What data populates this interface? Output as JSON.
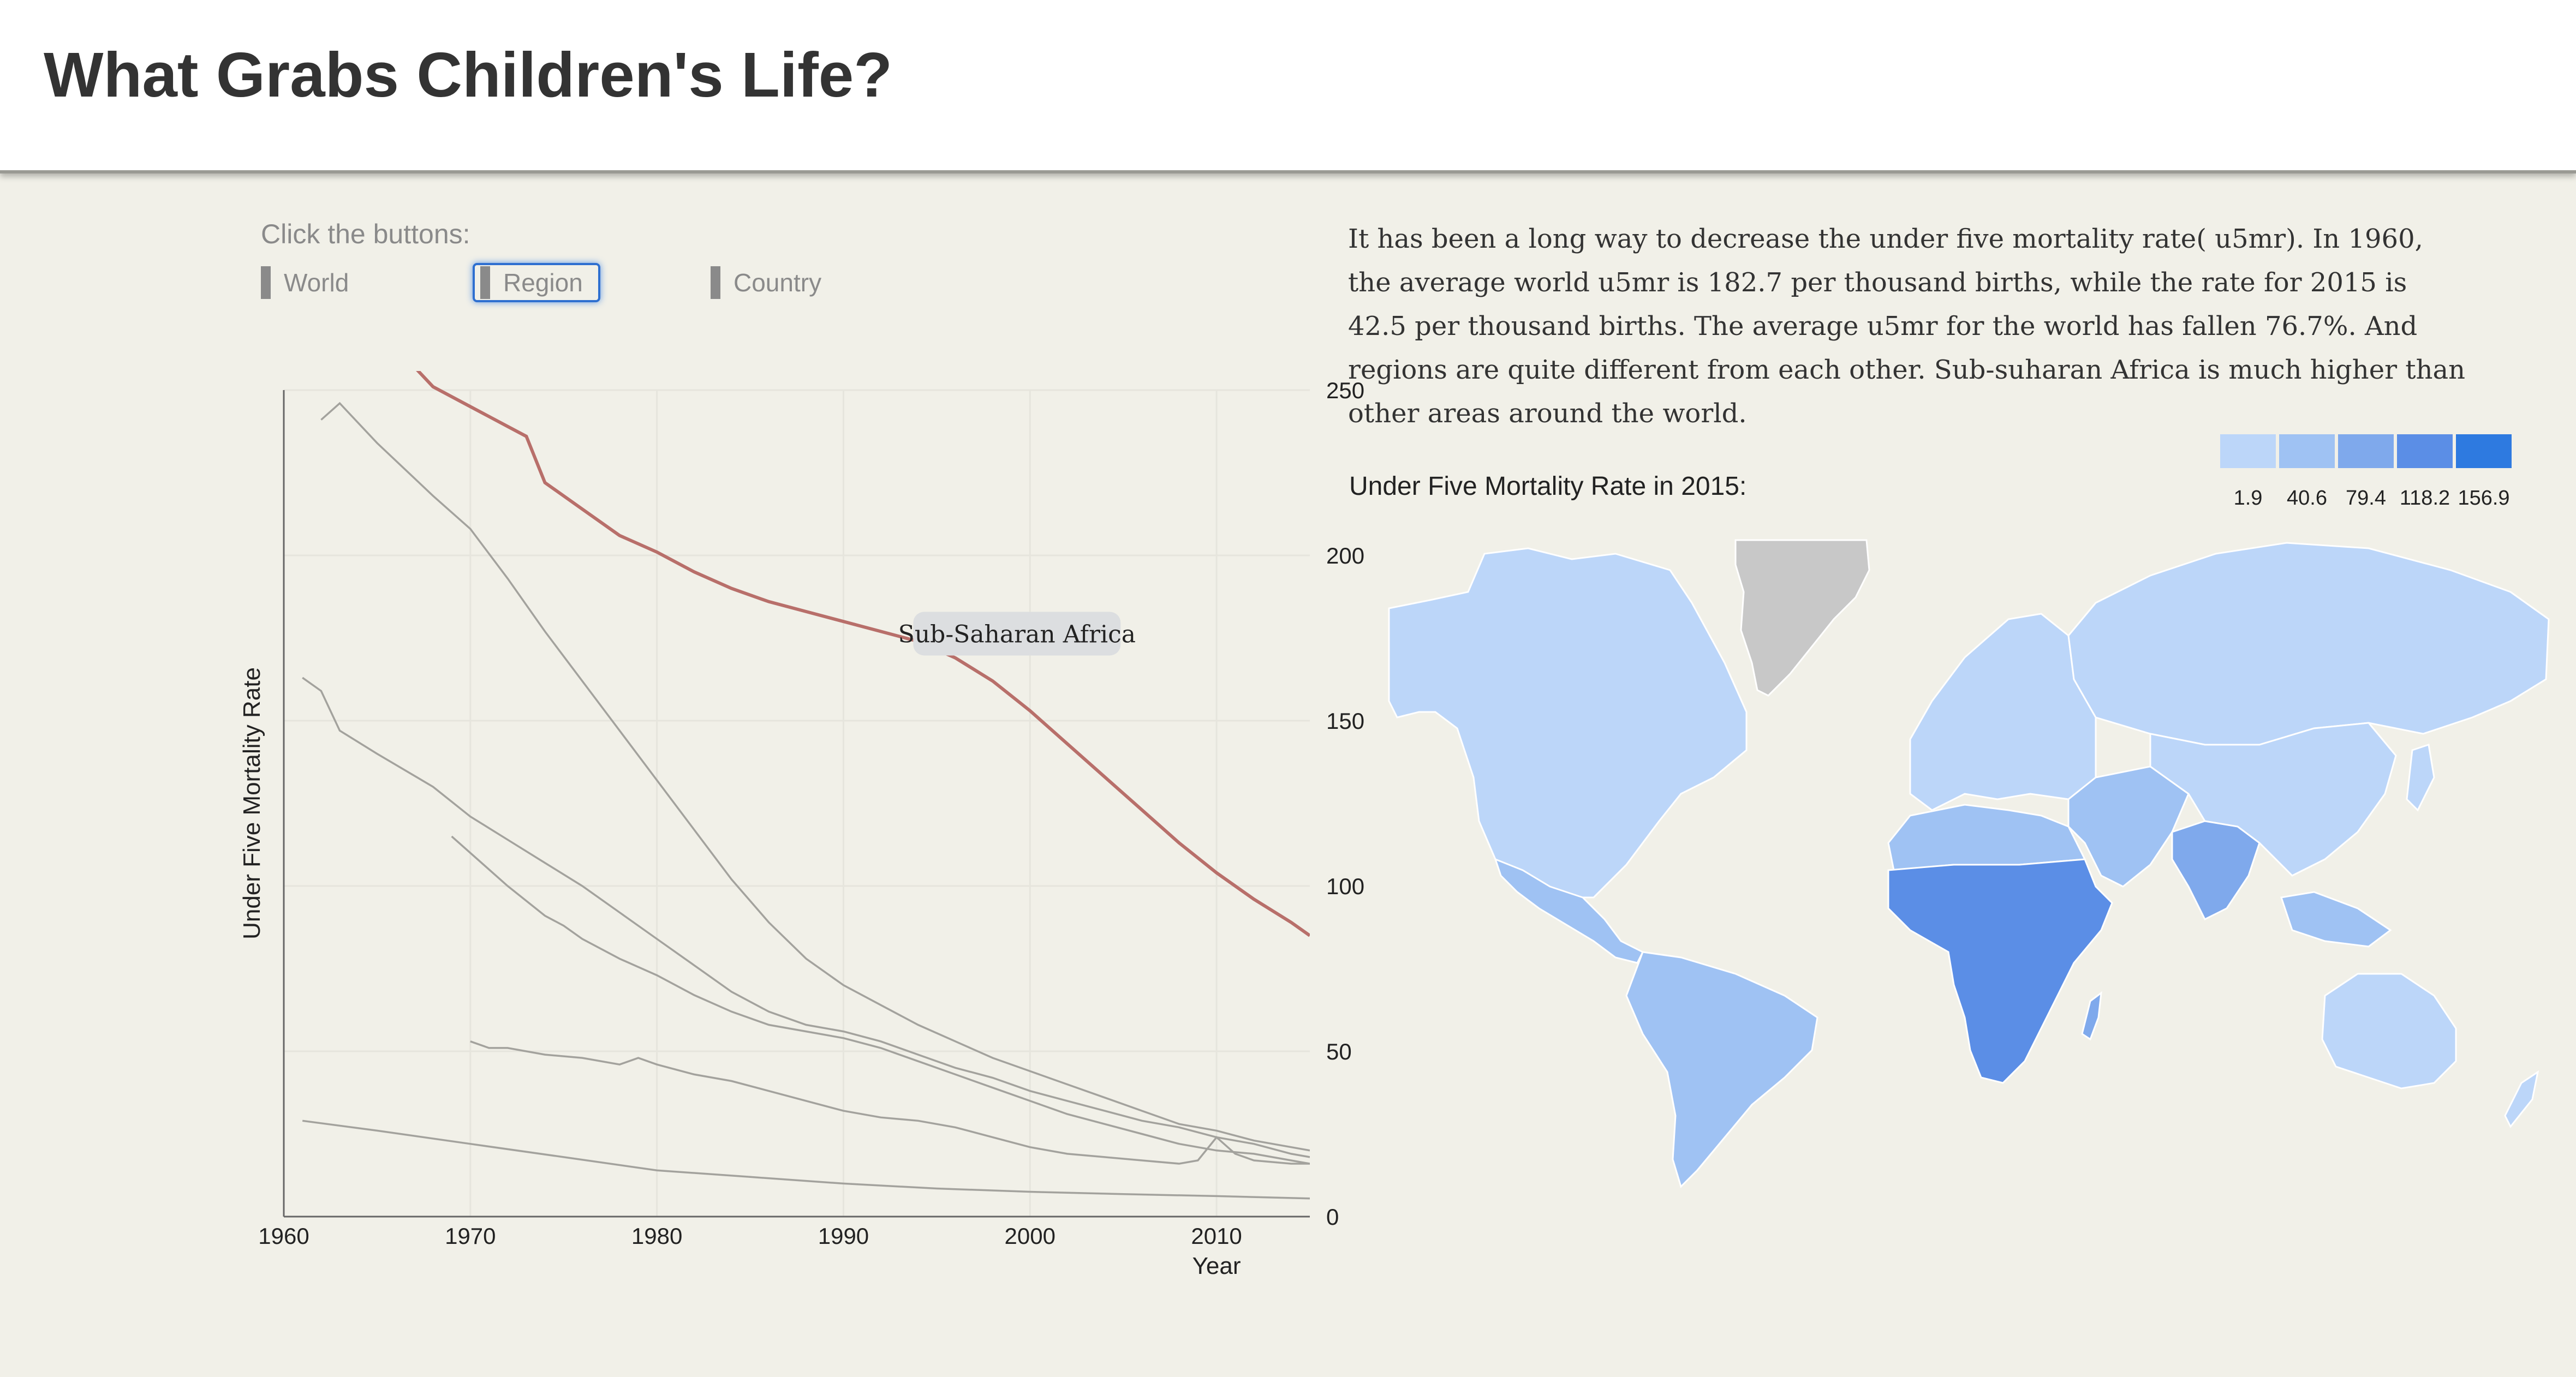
{
  "header": {
    "title": "What Grabs Children's Life?"
  },
  "controls": {
    "instruction": "Click the buttons:",
    "buttons": [
      {
        "label": "World",
        "active": false
      },
      {
        "label": "Region",
        "active": true
      },
      {
        "label": "Country",
        "active": false
      }
    ]
  },
  "description": "It has been a long way to decrease the under five mortality rate( u5mr). In 1960, the average world u5mr is 182.7 per thousand births, while the rate for 2015 is 42.5 per thousand births. The average u5mr for the world has fallen 76.7%. And regions are quite different from each other. Sub-suharan Africa is much higher than other areas around the world.",
  "map": {
    "title": "Under Five Mortality Rate in 2015:",
    "legend": [
      {
        "label": "1.9",
        "color": "#bcd6f9"
      },
      {
        "label": "40.6",
        "color": "#9fc2f3"
      },
      {
        "label": "79.4",
        "color": "#7fa9ec"
      },
      {
        "label": "118.2",
        "color": "#5b8ee6"
      },
      {
        "label": "156.9",
        "color": "#2e7ae0"
      }
    ],
    "no_data_color": "#c8c8c8"
  },
  "chart_data": {
    "type": "line",
    "xlabel": "Year",
    "ylabel": "Under Five Mortality Rate",
    "xlim": [
      1960,
      2015
    ],
    "ylim": [
      0,
      250
    ],
    "xticks": [
      "1960",
      "1970",
      "1980",
      "1990",
      "2000",
      "2010"
    ],
    "yticks": [
      "0",
      "50",
      "100",
      "150",
      "200",
      "250"
    ],
    "grid": true,
    "y_axis_side": "right",
    "highlight_label": "Sub-Saharan Africa",
    "highlight_color": "#b86f6a",
    "series": [
      {
        "name": "Sub-Saharan Africa",
        "highlight": true,
        "x": [
          1966,
          1967,
          1968,
          1970,
          1972,
          1973,
          1974,
          1976,
          1978,
          1980,
          1982,
          1984,
          1986,
          1988,
          1990,
          1992,
          1994,
          1996,
          1998,
          2000,
          2002,
          2004,
          2006,
          2008,
          2010,
          2012,
          2014,
          2015
        ],
        "y": [
          259,
          257,
          251,
          245,
          239,
          236,
          222,
          214,
          206,
          201,
          195,
          190,
          186,
          183,
          180,
          177,
          174,
          169,
          162,
          153,
          143,
          133,
          123,
          113,
          104,
          96,
          89,
          85
        ]
      },
      {
        "highlight": false,
        "x": [
          1962,
          1963,
          1965,
          1968,
          1970,
          1972,
          1974,
          1976,
          1978,
          1980,
          1982,
          1984,
          1986,
          1988,
          1990,
          1992,
          1994,
          1996,
          1998,
          2000,
          2002,
          2004,
          2006,
          2008,
          2010,
          2012,
          2014,
          2015
        ],
        "y": [
          241,
          246,
          234,
          218,
          208,
          193,
          177,
          162,
          147,
          132,
          117,
          102,
          89,
          78,
          70,
          64,
          58,
          53,
          48,
          44,
          40,
          36,
          32,
          28,
          26,
          23,
          21,
          20
        ]
      },
      {
        "highlight": false,
        "x": [
          1961,
          1962,
          1963,
          1965,
          1968,
          1970,
          1972,
          1974,
          1976,
          1978,
          1980,
          1982,
          1984,
          1986,
          1988,
          1990,
          1992,
          1994,
          1996,
          1998,
          2000,
          2002,
          2004,
          2006,
          2008,
          2010,
          2012,
          2014,
          2015
        ],
        "y": [
          163,
          159,
          147,
          140,
          130,
          121,
          114,
          107,
          100,
          92,
          84,
          76,
          68,
          62,
          58,
          56,
          53,
          49,
          45,
          42,
          38,
          35,
          32,
          29,
          27,
          24,
          22,
          19,
          18
        ]
      },
      {
        "highlight": false,
        "x": [
          1969,
          1972,
          1974,
          1975,
          1976,
          1978,
          1980,
          1982,
          1984,
          1986,
          1988,
          1990,
          1992,
          1994,
          1996,
          1998,
          2000,
          2002,
          2004,
          2006,
          2008,
          2010,
          2012,
          2014,
          2015
        ],
        "y": [
          115,
          100,
          91,
          88,
          84,
          78,
          73,
          67,
          62,
          58,
          56,
          54,
          51,
          47,
          43,
          39,
          35,
          31,
          28,
          25,
          22,
          20,
          19,
          17,
          16
        ]
      },
      {
        "highlight": false,
        "x": [
          1970,
          1971,
          1972,
          1974,
          1976,
          1978,
          1979,
          1980,
          1982,
          1984,
          1986,
          1988,
          1990,
          1992,
          1994,
          1996,
          1998,
          2000,
          2002,
          2004,
          2006,
          2008,
          2009,
          2010,
          2011,
          2012,
          2014,
          2015
        ],
        "y": [
          53,
          51,
          51,
          49,
          48,
          46,
          48,
          46,
          43,
          41,
          38,
          35,
          32,
          30,
          29,
          27,
          24,
          21,
          19,
          18,
          17,
          16,
          17,
          24,
          19,
          17,
          16,
          16
        ]
      },
      {
        "highlight": false,
        "x": [
          1961,
          1965,
          1970,
          1975,
          1980,
          1985,
          1990,
          1995,
          2000,
          2005,
          2010,
          2015
        ],
        "y": [
          29,
          26,
          22,
          18,
          14,
          12,
          10,
          8.5,
          7.5,
          6.8,
          6.2,
          5.5
        ]
      }
    ]
  }
}
